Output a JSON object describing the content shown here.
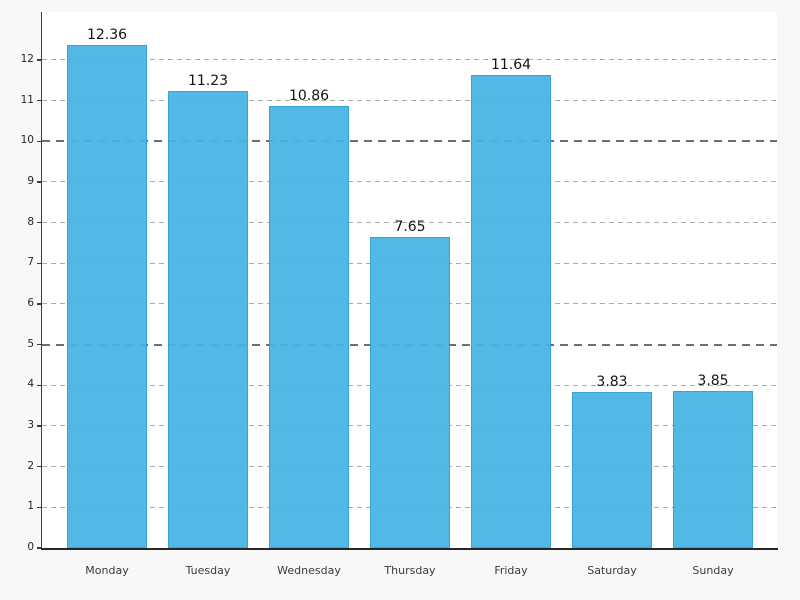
{
  "chart_data": {
    "type": "bar",
    "title": "",
    "xlabel": "",
    "ylabel": "",
    "categories": [
      "Monday",
      "Tuesday",
      "Wednesday",
      "Thursday",
      "Friday",
      "Saturday",
      "Sunday"
    ],
    "values": [
      12.36,
      11.23,
      10.86,
      7.65,
      11.64,
      3.83,
      3.85
    ],
    "value_labels": [
      "12.36",
      "11.23",
      "10.86",
      "7.65",
      "11.64",
      "3.83",
      "3.85"
    ],
    "yticks": [
      0,
      1,
      2,
      3,
      4,
      5,
      6,
      7,
      8,
      9,
      10,
      11,
      12
    ],
    "major_yticks": [
      0,
      5,
      10
    ],
    "ylim": [
      0,
      13.18
    ],
    "grid": true,
    "legend": "none",
    "bar_color": "#45b4e5",
    "bar_edge_color": "#2a9fd4",
    "figure_background": "#f8f8f8",
    "plot_background": "#ffffff"
  }
}
